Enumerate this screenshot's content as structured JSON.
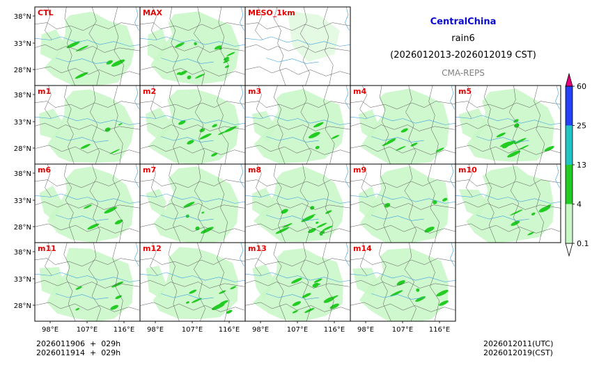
{
  "titles": {
    "region": "CentralChina",
    "variable": "rain6",
    "period": "(2026012013-2026012019 CST)",
    "system": "CMA-REPS"
  },
  "panels": [
    {
      "label": "CTL",
      "intensity": 0.35
    },
    {
      "label": "MAX",
      "intensity": 0.95
    },
    {
      "label": "MESO_1km",
      "intensity": 0.0
    },
    {
      "label": "m1",
      "intensity": 0.25
    },
    {
      "label": "m2",
      "intensity": 0.6
    },
    {
      "label": "m3",
      "intensity": 0.3
    },
    {
      "label": "m4",
      "intensity": 0.45
    },
    {
      "label": "m5",
      "intensity": 0.7
    },
    {
      "label": "m6",
      "intensity": 0.25
    },
    {
      "label": "m7",
      "intensity": 0.35
    },
    {
      "label": "m8",
      "intensity": 0.9
    },
    {
      "label": "m9",
      "intensity": 0.3
    },
    {
      "label": "m10",
      "intensity": 0.45
    },
    {
      "label": "m11",
      "intensity": 0.35
    },
    {
      "label": "m12",
      "intensity": 0.55
    },
    {
      "label": "m13",
      "intensity": 0.75
    },
    {
      "label": "m14",
      "intensity": 0.4
    }
  ],
  "axes": {
    "lat_ticks": [
      "38°N",
      "33°N",
      "28°N"
    ],
    "lon_ticks": [
      "98°E",
      "107°E",
      "116°E"
    ]
  },
  "colorbar": {
    "ticks": [
      "0.1",
      "4",
      "13",
      "25",
      "60"
    ],
    "colors": [
      "#ffffff",
      "#c8f7c5",
      "#22cc22",
      "#22c4c4",
      "#2541f5",
      "#e6007e"
    ]
  },
  "footer": {
    "init_utc": "2026011906  +  029h",
    "init_cst": "2026011914  +  029h",
    "valid_utc": "2026012011(UTC)",
    "valid_cst": "2026012019(CST)"
  }
}
